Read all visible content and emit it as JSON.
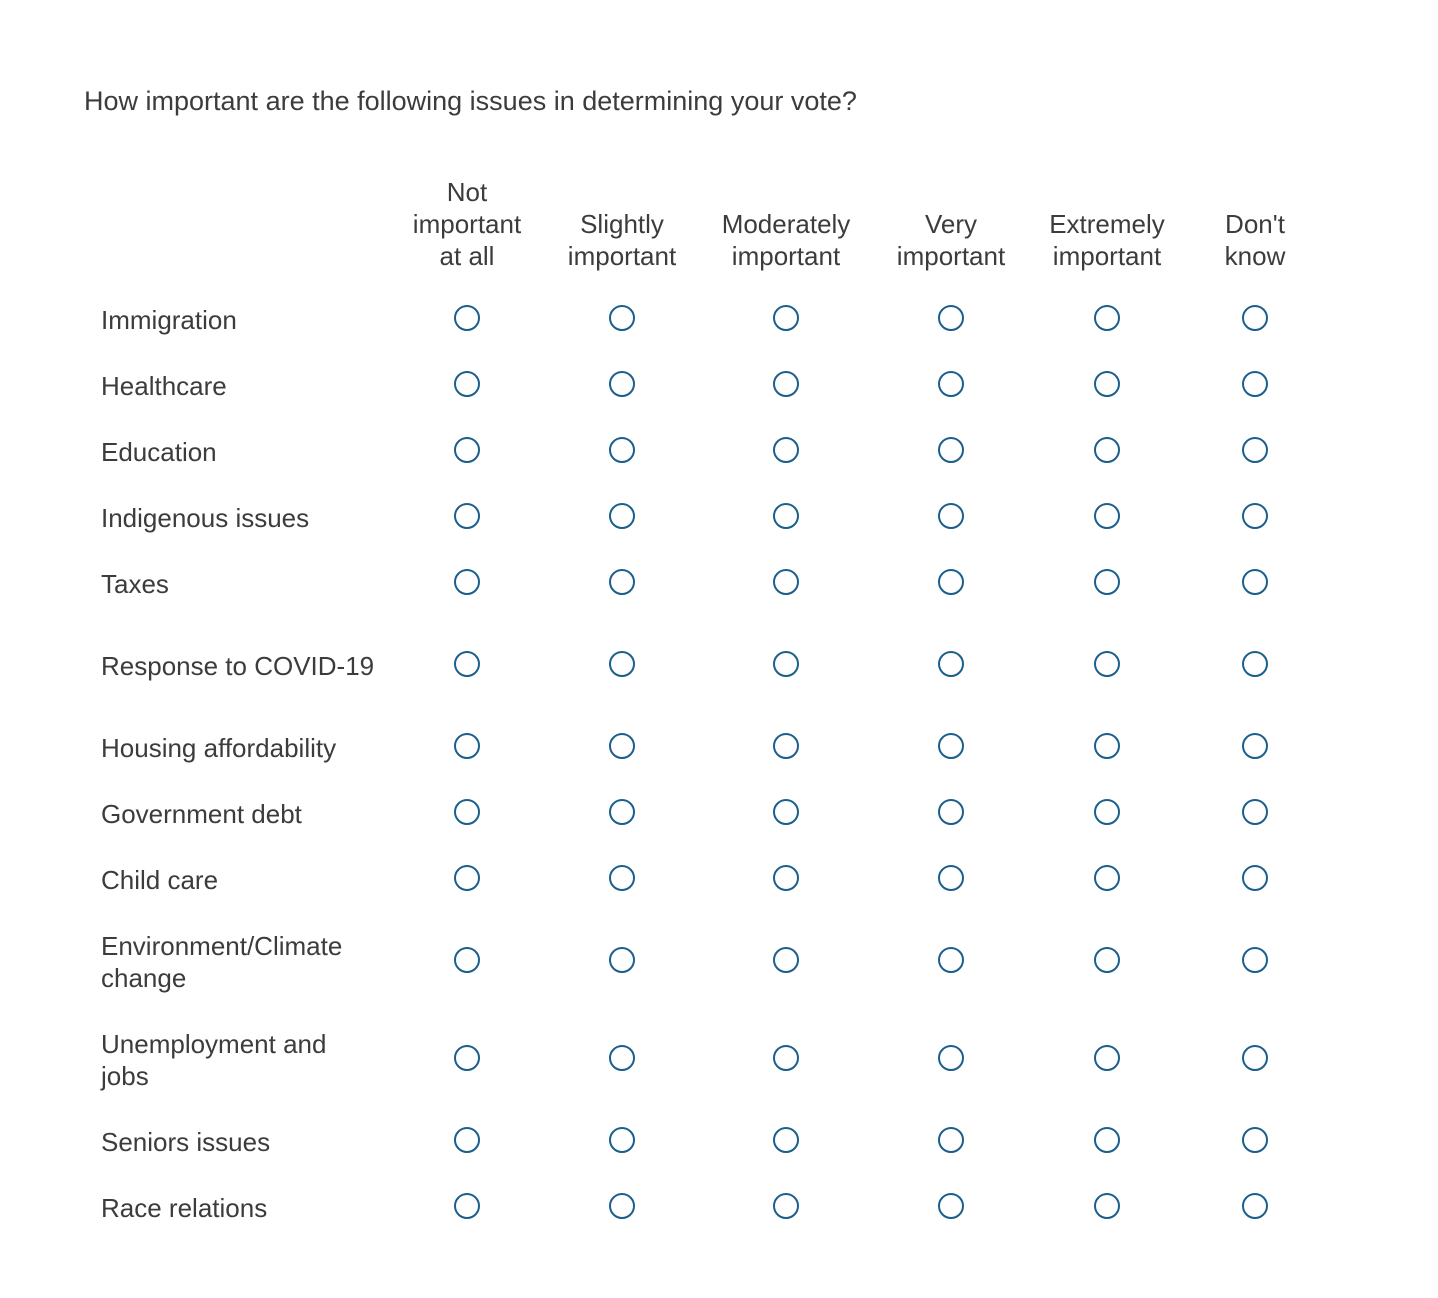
{
  "question": "How important are the following issues in determining your vote?",
  "columns": [
    "Not\nimportant\nat all",
    "Slightly\nimportant",
    "Moderately\nimportant",
    "Very\nimportant",
    "Extremely\nimportant",
    "Don't\nknow"
  ],
  "rows": [
    "Immigration",
    "Healthcare",
    "Education",
    "Indigenous issues",
    "Taxes",
    "Response to COVID-19",
    "Housing affordability",
    "Government debt",
    "Child care",
    "Environment/Climate change",
    "Unemployment and jobs",
    "Seniors issues",
    "Race relations"
  ],
  "accent_color": "#1b5f8c"
}
